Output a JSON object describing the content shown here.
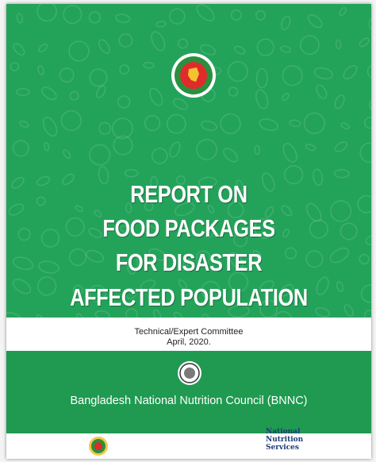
{
  "header": {
    "title_lines": [
      "REPORT ON",
      "FOOD PACKAGES",
      "FOR DISASTER",
      "AFFECTED POPULATION"
    ]
  },
  "committee": "Technical/Expert Committee",
  "date": "April, 2020.",
  "organization": "Bangladesh National Nutrition Council (BNNC)",
  "partner": {
    "lines": [
      "National",
      "Nutrition",
      "Services"
    ]
  }
}
